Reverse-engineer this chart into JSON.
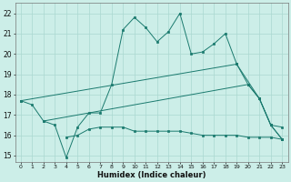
{
  "xlabel": "Humidex (Indice chaleur)",
  "xlim": [
    -0.5,
    23.5
  ],
  "ylim": [
    14.7,
    22.5
  ],
  "yticks": [
    15,
    16,
    17,
    18,
    19,
    20,
    21,
    22
  ],
  "xticks": [
    0,
    1,
    2,
    3,
    4,
    5,
    6,
    7,
    8,
    9,
    10,
    11,
    12,
    13,
    14,
    15,
    16,
    17,
    18,
    19,
    20,
    21,
    22,
    23
  ],
  "bg_color": "#cceee8",
  "grid_color": "#aad8d0",
  "line_color": "#1a7a6e",
  "line1_y": [
    17.7,
    17.5,
    16.7,
    16.5,
    14.9,
    16.4,
    17.1,
    17.1,
    18.5,
    21.2,
    21.8,
    21.3,
    20.6,
    21.1,
    22.0,
    20.0,
    20.1,
    20.5,
    21.0,
    19.5,
    18.5,
    17.8,
    16.5,
    16.4
  ],
  "line2_x": [
    0,
    19,
    21,
    22,
    23
  ],
  "line2_y": [
    17.7,
    19.5,
    17.8,
    16.5,
    15.8
  ],
  "line3_x": [
    2,
    20,
    21,
    22,
    23
  ],
  "line3_y": [
    16.7,
    18.5,
    17.8,
    16.5,
    15.8
  ],
  "line4_x": [
    4,
    5,
    6,
    7,
    8,
    9,
    10,
    11,
    12,
    13,
    14,
    15,
    16,
    17,
    18,
    19,
    20,
    21,
    22,
    23
  ],
  "line4_y": [
    15.9,
    16.0,
    16.3,
    16.4,
    16.4,
    16.4,
    16.2,
    16.2,
    16.2,
    16.2,
    16.2,
    16.1,
    16.0,
    16.0,
    16.0,
    16.0,
    15.9,
    15.9,
    15.9,
    15.8
  ]
}
